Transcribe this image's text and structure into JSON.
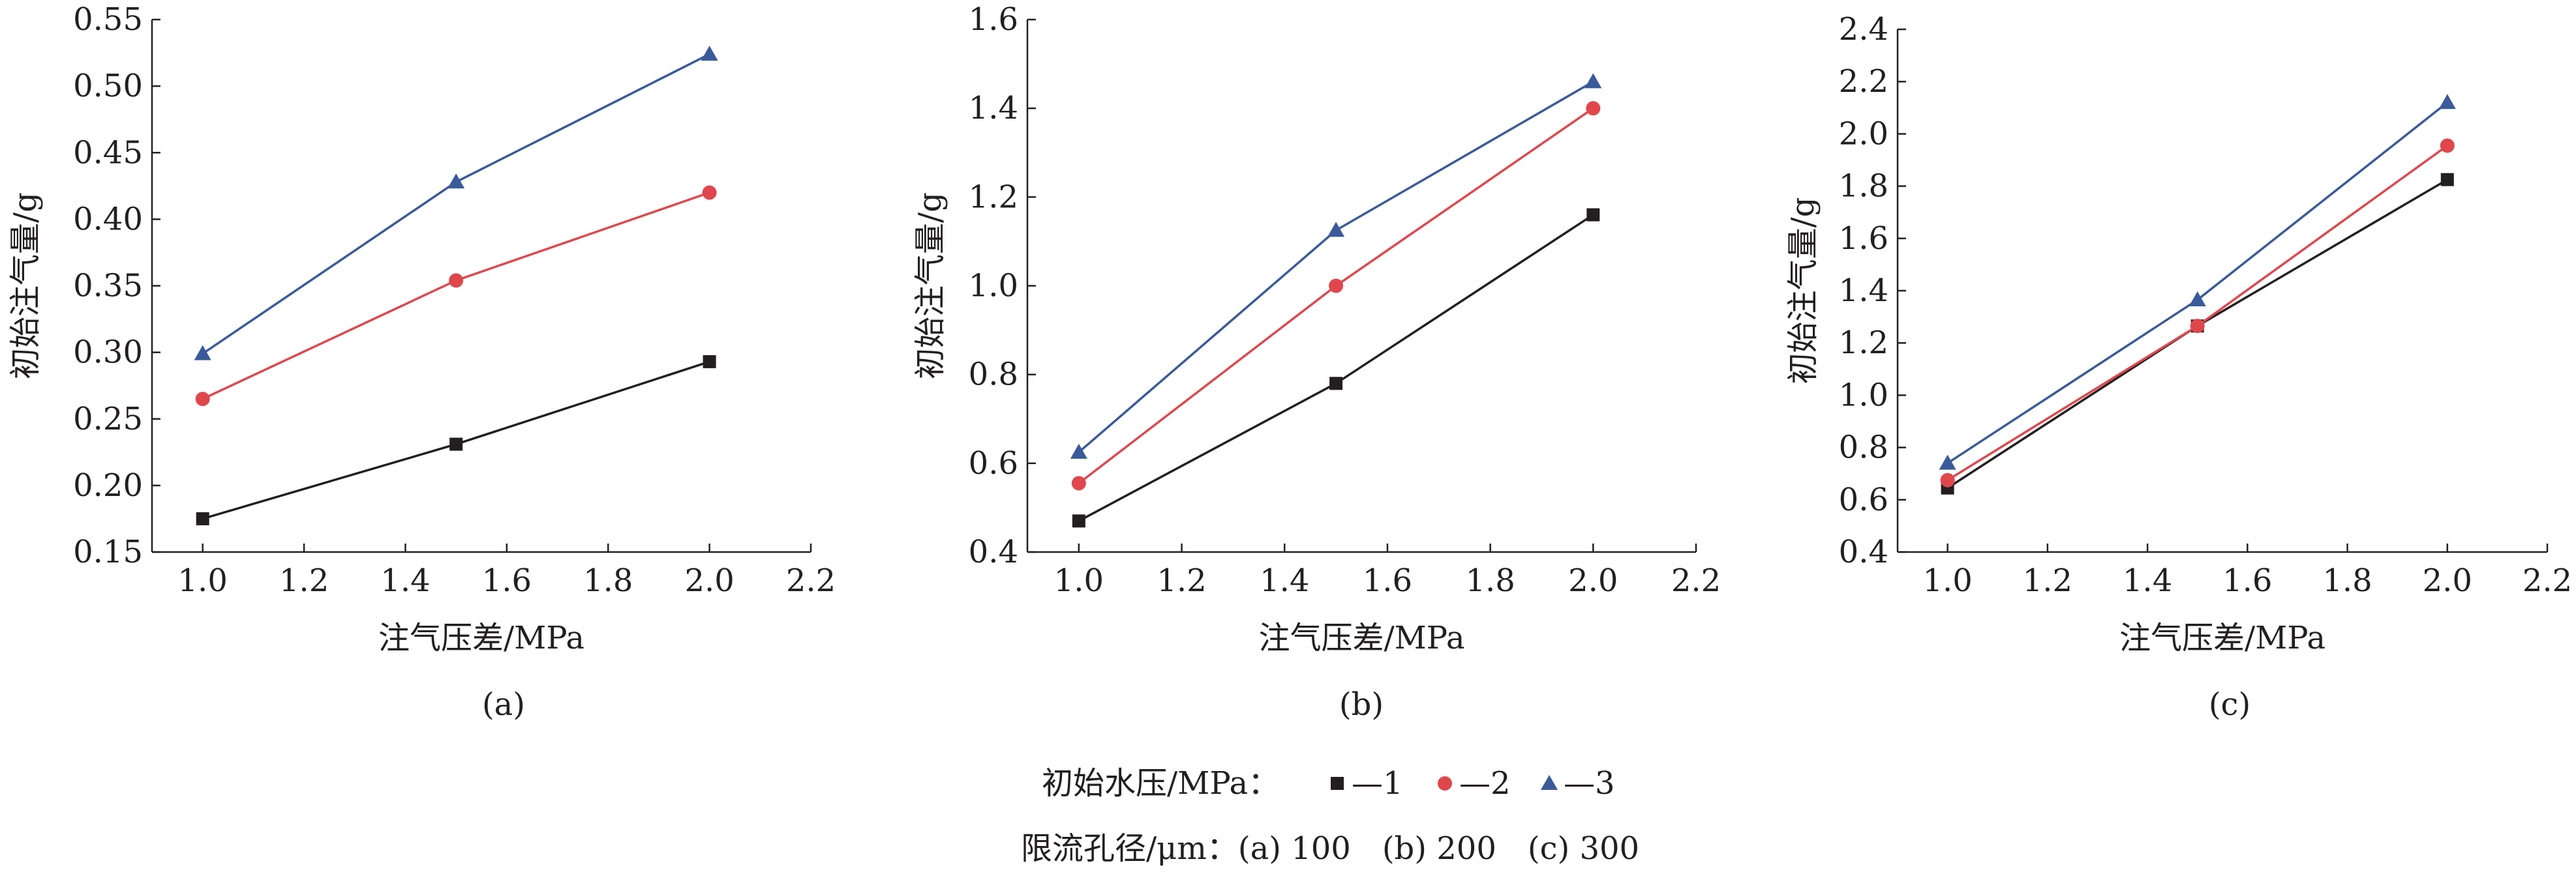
{
  "chart_data": [
    {
      "type": "line",
      "panel_label": "(a)",
      "xlabel": "注气压差/MPa",
      "ylabel": "初始注气量/g",
      "xlim": [
        0.9,
        2.2
      ],
      "ylim": [
        0.15,
        0.55
      ],
      "xticks": [
        1.0,
        1.2,
        1.4,
        1.6,
        1.8,
        2.0,
        2.2
      ],
      "xtick_labels": [
        "1.0",
        "1.2",
        "1.4",
        "1.6",
        "1.8",
        "2.0",
        "2.2"
      ],
      "yticks": [
        0.15,
        0.2,
        0.25,
        0.3,
        0.35,
        0.4,
        0.45,
        0.5,
        0.55
      ],
      "ytick_labels": [
        "0.15",
        "0.20",
        "0.25",
        "0.30",
        "0.35",
        "0.40",
        "0.45",
        "0.50",
        "0.55"
      ],
      "x": [
        1.0,
        1.5,
        2.0
      ],
      "series": [
        {
          "name": "1",
          "values": [
            0.175,
            0.231,
            0.293
          ],
          "color": "#231f20",
          "marker": "square"
        },
        {
          "name": "2",
          "values": [
            0.265,
            0.354,
            0.42
          ],
          "color": "#e0474c",
          "marker": "circle"
        },
        {
          "name": "3",
          "values": [
            0.299,
            0.428,
            0.524
          ],
          "color": "#3a5a9b",
          "marker": "triangle"
        }
      ],
      "grid": false
    },
    {
      "type": "line",
      "panel_label": "(b)",
      "xlabel": "注气压差/MPa",
      "ylabel": "初始注气量/g",
      "xlim": [
        0.9,
        2.2
      ],
      "ylim": [
        0.4,
        1.6
      ],
      "xticks": [
        1.0,
        1.2,
        1.4,
        1.6,
        1.8,
        2.0,
        2.2
      ],
      "xtick_labels": [
        "1.0",
        "1.2",
        "1.4",
        "1.6",
        "1.8",
        "2.0",
        "2.2"
      ],
      "yticks": [
        0.4,
        0.6,
        0.8,
        1.0,
        1.2,
        1.4,
        1.6
      ],
      "ytick_labels": [
        "0.4",
        "0.6",
        "0.8",
        "1.0",
        "1.2",
        "1.4",
        "1.6"
      ],
      "x": [
        1.0,
        1.5,
        2.0
      ],
      "series": [
        {
          "name": "1",
          "values": [
            0.47,
            0.78,
            1.16
          ],
          "color": "#231f20",
          "marker": "square"
        },
        {
          "name": "2",
          "values": [
            0.555,
            1.0,
            1.4
          ],
          "color": "#e0474c",
          "marker": "circle"
        },
        {
          "name": "3",
          "values": [
            0.625,
            1.125,
            1.46
          ],
          "color": "#3a5a9b",
          "marker": "triangle"
        }
      ],
      "grid": false
    },
    {
      "type": "line",
      "panel_label": "(c)",
      "xlabel": "注气压差/MPa",
      "ylabel": "初始注气量/g",
      "xlim": [
        0.9,
        2.2
      ],
      "ylim": [
        0.4,
        2.4
      ],
      "xticks": [
        1.0,
        1.2,
        1.4,
        1.6,
        1.8,
        2.0,
        2.2
      ],
      "xtick_labels": [
        "1.0",
        "1.2",
        "1.4",
        "1.6",
        "1.8",
        "2.0",
        "2.2"
      ],
      "yticks": [
        0.4,
        0.6,
        0.8,
        1.0,
        1.2,
        1.4,
        1.6,
        1.8,
        2.0,
        2.2,
        2.4
      ],
      "ytick_labels": [
        "0.4",
        "0.6",
        "0.8",
        "1.0",
        "1.2",
        "1.4",
        "1.6",
        "1.8",
        "2.0",
        "2.2",
        "2.4"
      ],
      "x": [
        1.0,
        1.5,
        2.0
      ],
      "series": [
        {
          "name": "1",
          "values": [
            0.645,
            1.265,
            1.825
          ],
          "color": "#231f20",
          "marker": "square"
        },
        {
          "name": "2",
          "values": [
            0.675,
            1.265,
            1.955
          ],
          "color": "#e0474c",
          "marker": "circle"
        },
        {
          "name": "3",
          "values": [
            0.74,
            1.365,
            2.12
          ],
          "color": "#3a5a9b",
          "marker": "triangle"
        }
      ],
      "grid": false
    }
  ],
  "legend": {
    "title": "初始水压/MPa：",
    "placement": "bottom-center",
    "items": [
      {
        "label": "—1",
        "color": "#231f20",
        "marker": "square"
      },
      {
        "label": "—2",
        "color": "#e0474c",
        "marker": "circle"
      },
      {
        "label": "—3",
        "color": "#3a5a9b",
        "marker": "triangle"
      }
    ]
  },
  "caption_line": "限流孔径/μm：(a) 100　(b) 200　(c) 300"
}
